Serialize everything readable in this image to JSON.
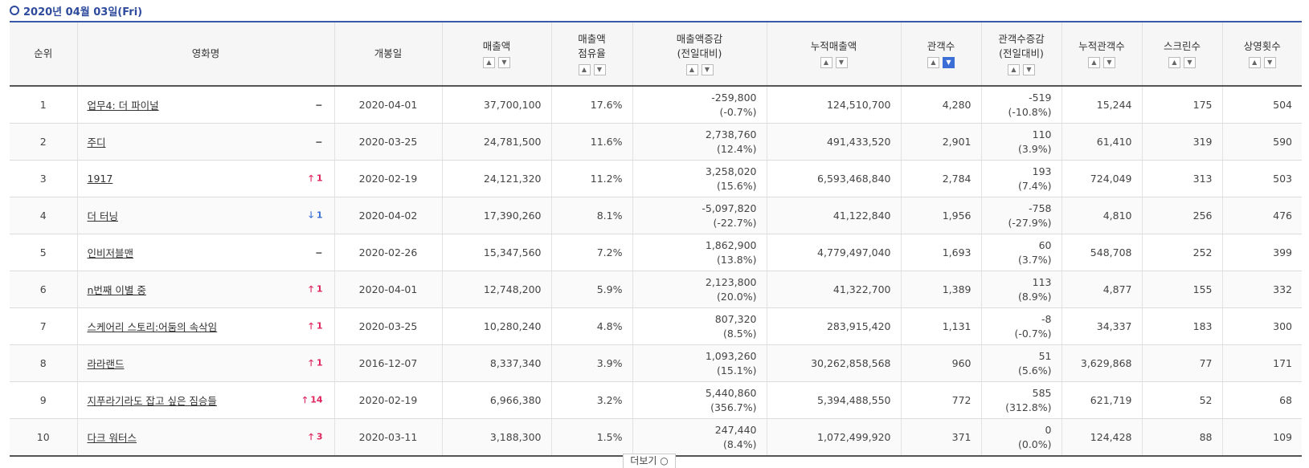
{
  "date_label": "2020년 04월 03일(Fri)",
  "headers": {
    "rank": "순위",
    "title": "영화명",
    "open_date": "개봉일",
    "sales": "매출액",
    "share_line1": "매출액",
    "share_line2": "점유율",
    "sales_change_line1": "매출액증감",
    "sales_change_line2": "(전일대비)",
    "cum_sales": "누적매출액",
    "audience": "관객수",
    "aud_change_line1": "관객수증감",
    "aud_change_line2": "(전일대비)",
    "cum_audience": "누적관객수",
    "screens": "스크린수",
    "shows": "상영횟수"
  },
  "sort": {
    "up": "^",
    "down": "v"
  },
  "rows": [
    {
      "rank": "1",
      "title": "업무4: 더 파이널",
      "change": "−",
      "dir": "same",
      "open": "2020-04-01",
      "sales": "37,700,100",
      "share": "17.6%",
      "sales_chg": "-259,800",
      "sales_chg_pct": "(-0.7%)",
      "cum_sales": "124,510,700",
      "aud": "4,280",
      "aud_chg": "-519",
      "aud_chg_pct": "(-10.8%)",
      "cum_aud": "15,244",
      "screens": "175",
      "shows": "504"
    },
    {
      "rank": "2",
      "title": "주디",
      "change": "−",
      "dir": "same",
      "open": "2020-03-25",
      "sales": "24,781,500",
      "share": "11.6%",
      "sales_chg": "2,738,760",
      "sales_chg_pct": "(12.4%)",
      "cum_sales": "491,433,520",
      "aud": "2,901",
      "aud_chg": "110",
      "aud_chg_pct": "(3.9%)",
      "cum_aud": "61,410",
      "screens": "319",
      "shows": "590"
    },
    {
      "rank": "3",
      "title": "1917",
      "change": "🡑 1",
      "dir": "up",
      "open": "2020-02-19",
      "sales": "24,121,320",
      "share": "11.2%",
      "sales_chg": "3,258,020",
      "sales_chg_pct": "(15.6%)",
      "cum_sales": "6,593,468,840",
      "aud": "2,784",
      "aud_chg": "193",
      "aud_chg_pct": "(7.4%)",
      "cum_aud": "724,049",
      "screens": "313",
      "shows": "503"
    },
    {
      "rank": "4",
      "title": "더 터닝",
      "change": "🡓 1",
      "dir": "down",
      "open": "2020-04-02",
      "sales": "17,390,260",
      "share": "8.1%",
      "sales_chg": "-5,097,820",
      "sales_chg_pct": "(-22.7%)",
      "cum_sales": "41,122,840",
      "aud": "1,956",
      "aud_chg": "-758",
      "aud_chg_pct": "(-27.9%)",
      "cum_aud": "4,810",
      "screens": "256",
      "shows": "476"
    },
    {
      "rank": "5",
      "title": "인비저블맨",
      "change": "−",
      "dir": "same",
      "open": "2020-02-26",
      "sales": "15,347,560",
      "share": "7.2%",
      "sales_chg": "1,862,900",
      "sales_chg_pct": "(13.8%)",
      "cum_sales": "4,779,497,040",
      "aud": "1,693",
      "aud_chg": "60",
      "aud_chg_pct": "(3.7%)",
      "cum_aud": "548,708",
      "screens": "252",
      "shows": "399"
    },
    {
      "rank": "6",
      "title": "n번째 이별 중",
      "change": "🡑 1",
      "dir": "up",
      "open": "2020-04-01",
      "sales": "12,748,200",
      "share": "5.9%",
      "sales_chg": "2,123,800",
      "sales_chg_pct": "(20.0%)",
      "cum_sales": "41,322,700",
      "aud": "1,389",
      "aud_chg": "113",
      "aud_chg_pct": "(8.9%)",
      "cum_aud": "4,877",
      "screens": "155",
      "shows": "332"
    },
    {
      "rank": "7",
      "title": "스케어리 스토리:어둠의 속삭임",
      "change": "🡑 1",
      "dir": "up",
      "open": "2020-03-25",
      "sales": "10,280,240",
      "share": "4.8%",
      "sales_chg": "807,320",
      "sales_chg_pct": "(8.5%)",
      "cum_sales": "283,915,420",
      "aud": "1,131",
      "aud_chg": "-8",
      "aud_chg_pct": "(-0.7%)",
      "cum_aud": "34,337",
      "screens": "183",
      "shows": "300"
    },
    {
      "rank": "8",
      "title": "라라랜드",
      "change": "🡑 1",
      "dir": "up",
      "open": "2016-12-07",
      "sales": "8,337,340",
      "share": "3.9%",
      "sales_chg": "1,093,260",
      "sales_chg_pct": "(15.1%)",
      "cum_sales": "30,262,858,568",
      "aud": "960",
      "aud_chg": "51",
      "aud_chg_pct": "(5.6%)",
      "cum_aud": "3,629,868",
      "screens": "77",
      "shows": "171"
    },
    {
      "rank": "9",
      "title": "지푸라기라도 잡고 싶은 짐승들",
      "change": "🡑 14",
      "dir": "up",
      "open": "2020-02-19",
      "sales": "6,966,380",
      "share": "3.2%",
      "sales_chg": "5,440,860",
      "sales_chg_pct": "(356.7%)",
      "cum_sales": "5,394,488,550",
      "aud": "772",
      "aud_chg": "585",
      "aud_chg_pct": "(312.8%)",
      "cum_aud": "621,719",
      "screens": "52",
      "shows": "68"
    },
    {
      "rank": "10",
      "title": "다크 워터스",
      "change": "🡑 3",
      "dir": "up",
      "open": "2020-03-11",
      "sales": "3,188,300",
      "share": "1.5%",
      "sales_chg": "247,440",
      "sales_chg_pct": "(8.4%)",
      "cum_sales": "1,072,499,920",
      "aud": "371",
      "aud_chg": "0",
      "aud_chg_pct": "(0.0%)",
      "cum_aud": "124,428",
      "screens": "88",
      "shows": "109"
    }
  ],
  "more_label": "더보기 ○",
  "colors": {
    "accent": "#2d4a9c",
    "up": "#e0245e",
    "down": "#3b6fd6",
    "sort_active": "#3b6fd6"
  }
}
